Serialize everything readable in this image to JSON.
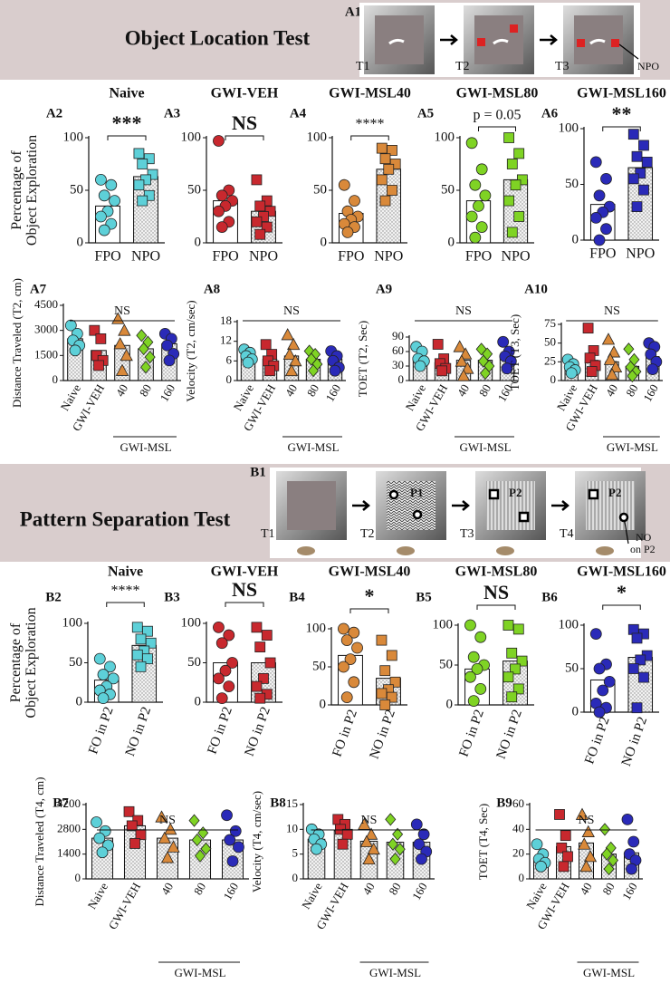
{
  "header_a": {
    "label": "A1",
    "title": "Object Location Test",
    "steps": [
      "T1",
      "T2",
      "T3"
    ],
    "note": "NPO"
  },
  "header_b": {
    "label": "B1",
    "title": "Pattern Separation Test",
    "steps": [
      "T1",
      "T2",
      "T3",
      "T4"
    ],
    "patterns": [
      "P1",
      "P2",
      "P2"
    ],
    "note": [
      "NO",
      "on P2"
    ]
  },
  "chart_data": [
    {
      "type": "bar",
      "label": "A2",
      "title": "Naive",
      "sig": "***",
      "ylabel": [
        "Percentage of",
        "Object Exploration"
      ],
      "categories": [
        "FPO",
        "NPO"
      ],
      "values": [
        35,
        63
      ],
      "points": [
        [
          60,
          55,
          45,
          40,
          30,
          25,
          18,
          12
        ],
        [
          85,
          80,
          75,
          65,
          60,
          55,
          45,
          40
        ]
      ],
      "colors": [
        "#5dd0d8",
        "#5dd0d8"
      ],
      "markers": [
        "circle",
        "square"
      ],
      "fills": [
        "white",
        "dots"
      ],
      "ylim": [
        0,
        100
      ],
      "yticks": [
        0,
        50,
        100
      ]
    },
    {
      "type": "bar",
      "label": "A3",
      "title": "GWI-VEH",
      "sig": "NS",
      "categories": [
        "FPO",
        "NPO"
      ],
      "values": [
        40,
        30
      ],
      "points": [
        [
          97,
          50,
          45,
          40,
          35,
          30,
          20,
          15
        ],
        [
          60,
          40,
          35,
          30,
          25,
          20,
          15,
          8
        ]
      ],
      "colors": [
        "#c8282e",
        "#c8282e"
      ],
      "markers": [
        "circle",
        "square"
      ],
      "fills": [
        "white",
        "dots"
      ],
      "ylim": [
        0,
        100
      ],
      "yticks": [
        0,
        50,
        100
      ]
    },
    {
      "type": "bar",
      "label": "A4",
      "title": "GWI-MSL40",
      "sig": "****",
      "categories": [
        "FPO",
        "NPO"
      ],
      "values": [
        28,
        70
      ],
      "points": [
        [
          55,
          40,
          30,
          25,
          22,
          18,
          15,
          10
        ],
        [
          90,
          88,
          80,
          75,
          70,
          60,
          50,
          40
        ]
      ],
      "colors": [
        "#d9893a",
        "#d9893a"
      ],
      "markers": [
        "circle",
        "square"
      ],
      "fills": [
        "white",
        "dots"
      ],
      "ylim": [
        0,
        100
      ],
      "yticks": [
        0,
        50,
        100
      ]
    },
    {
      "type": "bar",
      "label": "A5",
      "title": "GWI-MSL80",
      "sig": "p = 0.05",
      "categories": [
        "FPO",
        "NPO"
      ],
      "values": [
        40,
        60
      ],
      "points": [
        [
          95,
          70,
          55,
          45,
          35,
          25,
          15,
          5
        ],
        [
          100,
          85,
          75,
          60,
          55,
          40,
          25,
          10
        ]
      ],
      "colors": [
        "#7fd324",
        "#7fd324"
      ],
      "markers": [
        "circle",
        "square"
      ],
      "fills": [
        "white",
        "dots"
      ],
      "ylim": [
        0,
        100
      ],
      "yticks": [
        0,
        50,
        100
      ]
    },
    {
      "type": "bar",
      "label": "A6",
      "title": "GWI-MSL160",
      "sig": "**",
      "categories": [
        "FPO",
        "NPO"
      ],
      "values": [
        32,
        65
      ],
      "points": [
        [
          70,
          55,
          40,
          30,
          25,
          20,
          10,
          0
        ],
        [
          95,
          85,
          75,
          70,
          60,
          55,
          45,
          30
        ]
      ],
      "colors": [
        "#2a2ab8",
        "#2a2ab8"
      ],
      "markers": [
        "circle",
        "square"
      ],
      "fills": [
        "white",
        "dots"
      ],
      "ylim": [
        0,
        100
      ],
      "yticks": [
        0,
        50,
        100
      ]
    },
    {
      "type": "bar",
      "label": "A7",
      "sig": "NS",
      "ylabel": [
        "Distance Traveled (T2, cm)"
      ],
      "xgroup": "GWI-MSL",
      "categories": [
        "Naive",
        "GWI-VEH",
        "40",
        "80",
        "160"
      ],
      "values": [
        2500,
        1800,
        2100,
        1900,
        2200
      ],
      "points": [
        [
          3300,
          2800,
          2400,
          2100,
          1800
        ],
        [
          3000,
          2500,
          1500,
          1200,
          900
        ],
        [
          3700,
          3000,
          2200,
          1500,
          600
        ],
        [
          2700,
          2300,
          1900,
          1400,
          800
        ],
        [
          2800,
          2500,
          2100,
          1600,
          1200
        ]
      ],
      "colors": [
        "#5dd0d8",
        "#c8282e",
        "#d9893a",
        "#7fd324",
        "#2a2ab8"
      ],
      "markers": [
        "circle",
        "square",
        "triangle",
        "diamond",
        "circle"
      ],
      "fills": [
        "dots",
        "dots",
        "dots",
        "dots",
        "dots"
      ],
      "ylim": [
        0,
        4500
      ],
      "yticks": [
        0,
        1500,
        3000,
        4500
      ]
    },
    {
      "type": "bar",
      "label": "A8",
      "sig": "NS",
      "ylabel": [
        "Velocity (T2, cm/sec)"
      ],
      "xgroup": "GWI-MSL",
      "categories": [
        "Naive",
        "GWI-VEH",
        "40",
        "80",
        "160"
      ],
      "values": [
        7.5,
        6.5,
        7.5,
        6.5,
        6.5
      ],
      "points": [
        [
          9.5,
          8.5,
          7.5,
          6.5,
          5.5
        ],
        [
          11,
          8,
          6,
          4.5,
          3
        ],
        [
          14,
          11,
          8,
          6,
          3
        ],
        [
          9,
          8,
          6.5,
          5,
          3
        ],
        [
          9,
          7.5,
          6,
          4,
          3
        ]
      ],
      "colors": [
        "#5dd0d8",
        "#c8282e",
        "#d9893a",
        "#7fd324",
        "#2a2ab8"
      ],
      "markers": [
        "circle",
        "square",
        "triangle",
        "diamond",
        "circle"
      ],
      "fills": [
        "dots",
        "dots",
        "dots",
        "dots",
        "dots"
      ],
      "ylim": [
        0,
        18
      ],
      "yticks": [
        0,
        6,
        12,
        18
      ]
    },
    {
      "type": "bar",
      "label": "A9",
      "sig": "NS",
      "ylabel": [
        "TOET (T2, Sec)"
      ],
      "xgroup": "GWI-MSL",
      "categories": [
        "Naive",
        "GWI-VEH",
        "40",
        "80",
        "160"
      ],
      "values": [
        48,
        37,
        42,
        42,
        50
      ],
      "points": [
        [
          70,
          60,
          45,
          40,
          30
        ],
        [
          75,
          45,
          35,
          25,
          20
        ],
        [
          70,
          55,
          40,
          25,
          10
        ],
        [
          65,
          55,
          40,
          30,
          15
        ],
        [
          80,
          60,
          50,
          40,
          25
        ]
      ],
      "colors": [
        "#5dd0d8",
        "#c8282e",
        "#d9893a",
        "#7fd324",
        "#2a2ab8"
      ],
      "markers": [
        "circle",
        "square",
        "triangle",
        "diamond",
        "circle"
      ],
      "fills": [
        "dots",
        "dots",
        "dots",
        "dots",
        "dots"
      ],
      "ylim": [
        0,
        90
      ],
      "yticks": [
        0,
        30,
        60,
        90
      ]
    },
    {
      "type": "bar",
      "label": "A10",
      "sig": "NS",
      "ylabel": [
        "TOET (T3, Sec)"
      ],
      "xgroup": "GWI-MSL",
      "categories": [
        "Naive",
        "GWI-VEH",
        "40",
        "80",
        "160"
      ],
      "values": [
        18,
        27,
        25,
        19,
        32
      ],
      "points": [
        [
          28,
          22,
          18,
          14,
          10
        ],
        [
          70,
          40,
          30,
          20,
          12
        ],
        [
          55,
          38,
          28,
          18,
          8
        ],
        [
          42,
          28,
          18,
          12,
          6
        ],
        [
          50,
          45,
          35,
          25,
          15
        ]
      ],
      "colors": [
        "#5dd0d8",
        "#c8282e",
        "#d9893a",
        "#7fd324",
        "#2a2ab8"
      ],
      "markers": [
        "circle",
        "square",
        "triangle",
        "diamond",
        "circle"
      ],
      "fills": [
        "dots",
        "dots",
        "dots",
        "dots",
        "dots"
      ],
      "ylim": [
        0,
        75
      ],
      "yticks": [
        0,
        25,
        50,
        75
      ]
    },
    {
      "type": "bar",
      "label": "B2",
      "title": "Naive",
      "sig": "****",
      "ylabel": [
        "Percentage of",
        "Object Exploration"
      ],
      "categories": [
        "FO in P2",
        "NO in P2"
      ],
      "values": [
        28,
        72
      ],
      "points": [
        [
          55,
          45,
          35,
          30,
          20,
          15,
          10,
          5
        ],
        [
          95,
          90,
          80,
          75,
          65,
          60,
          55,
          45
        ]
      ],
      "colors": [
        "#5dd0d8",
        "#5dd0d8"
      ],
      "markers": [
        "circle",
        "square"
      ],
      "fills": [
        "white",
        "dots"
      ],
      "ylim": [
        0,
        100
      ],
      "yticks": [
        0,
        50,
        100
      ]
    },
    {
      "type": "bar",
      "label": "B3",
      "title": "GWI-VEH",
      "sig": "NS",
      "categories": [
        "FO in P2",
        "NO in P2"
      ],
      "values": [
        50,
        50
      ],
      "points": [
        [
          95,
          85,
          75,
          50,
          40,
          30,
          20,
          5
        ],
        [
          95,
          85,
          70,
          50,
          30,
          20,
          10,
          5
        ]
      ],
      "colors": [
        "#c8282e",
        "#c8282e"
      ],
      "markers": [
        "circle",
        "square"
      ],
      "fills": [
        "white",
        "dots"
      ],
      "ylim": [
        0,
        100
      ],
      "yticks": [
        0,
        50,
        100
      ]
    },
    {
      "type": "bar",
      "label": "B4",
      "title": "GWI-MSL40",
      "sig": "*",
      "categories": [
        "FO in P2",
        "NO in P2"
      ],
      "values": [
        65,
        35
      ],
      "points": [
        [
          100,
          95,
          85,
          75,
          60,
          50,
          30,
          10
        ],
        [
          85,
          65,
          45,
          30,
          20,
          15,
          10,
          0
        ]
      ],
      "colors": [
        "#d9893a",
        "#d9893a"
      ],
      "markers": [
        "circle",
        "square"
      ],
      "fills": [
        "white",
        "dots"
      ],
      "ylim": [
        0,
        100
      ],
      "yticks": [
        0,
        50,
        100
      ]
    },
    {
      "type": "bar",
      "label": "B5",
      "title": "GWI-MSL80",
      "sig": "NS",
      "categories": [
        "FO in P2",
        "NO in P2"
      ],
      "values": [
        45,
        55
      ],
      "points": [
        [
          100,
          85,
          60,
          50,
          45,
          35,
          20,
          5
        ],
        [
          100,
          95,
          65,
          55,
          45,
          35,
          20,
          10
        ]
      ],
      "colors": [
        "#7fd324",
        "#7fd324"
      ],
      "markers": [
        "circle",
        "square"
      ],
      "fills": [
        "white",
        "dots"
      ],
      "ylim": [
        0,
        100
      ],
      "yticks": [
        0,
        50,
        100
      ]
    },
    {
      "type": "bar",
      "label": "B6",
      "title": "GWI-MSL160",
      "sig": "*",
      "categories": [
        "FO in P2",
        "NO in P2"
      ],
      "values": [
        37,
        63
      ],
      "points": [
        [
          90,
          55,
          50,
          35,
          25,
          10,
          5,
          0
        ],
        [
          95,
          90,
          85,
          65,
          60,
          50,
          40,
          5
        ]
      ],
      "colors": [
        "#2a2ab8",
        "#2a2ab8"
      ],
      "markers": [
        "circle",
        "square"
      ],
      "fills": [
        "white",
        "dots"
      ],
      "ylim": [
        0,
        100
      ],
      "yticks": [
        0,
        50,
        100
      ]
    },
    {
      "type": "bar",
      "label": "B7",
      "sig": "NS",
      "ylabel": [
        "Distance Traveled (T4, cm)"
      ],
      "xgroup": "GWI-MSL",
      "categories": [
        "Naive",
        "GWI-VEH",
        "40",
        "80",
        "160"
      ],
      "values": [
        2300,
        3000,
        2300,
        2200,
        2200
      ],
      "points": [
        [
          3200,
          2700,
          2300,
          1900,
          1500
        ],
        [
          3800,
          3300,
          3000,
          2500,
          2000
        ],
        [
          3500,
          2800,
          2300,
          1800,
          1200
        ],
        [
          3300,
          2600,
          2200,
          1700,
          1300
        ],
        [
          3600,
          2700,
          2200,
          1800,
          1000
        ]
      ],
      "colors": [
        "#5dd0d8",
        "#c8282e",
        "#d9893a",
        "#7fd324",
        "#2a2ab8"
      ],
      "markers": [
        "circle",
        "square",
        "triangle",
        "diamond",
        "circle"
      ],
      "fills": [
        "dots",
        "dots",
        "dots",
        "dots",
        "dots"
      ],
      "ylim": [
        0,
        4200
      ],
      "yticks": [
        0,
        1400,
        2800,
        4200
      ]
    },
    {
      "type": "bar",
      "label": "B8",
      "sig": "NS",
      "ylabel": [
        "Velocity (T4, cm/sec)"
      ],
      "xgroup": "GWI-MSL",
      "categories": [
        "Naive",
        "GWI-VEH",
        "40",
        "80",
        "160"
      ],
      "values": [
        8,
        9.7,
        7.6,
        7.4,
        7.4
      ],
      "points": [
        [
          10,
          9,
          8,
          7,
          6
        ],
        [
          12,
          11,
          10,
          9,
          7
        ],
        [
          11,
          9,
          7.5,
          6,
          4
        ],
        [
          12,
          9,
          7,
          6,
          4
        ],
        [
          11,
          9,
          7,
          5.5,
          4
        ]
      ],
      "colors": [
        "#5dd0d8",
        "#c8282e",
        "#d9893a",
        "#7fd324",
        "#2a2ab8"
      ],
      "markers": [
        "circle",
        "square",
        "triangle",
        "diamond",
        "circle"
      ],
      "fills": [
        "dots",
        "dots",
        "dots",
        "dots",
        "dots"
      ],
      "ylim": [
        0,
        15
      ],
      "yticks": [
        0,
        5,
        10,
        15
      ]
    },
    {
      "type": "bar",
      "label": "B9",
      "sig": "NS",
      "ylabel": [
        "TOET (T4, Sec)"
      ],
      "xgroup": "GWI-MSL",
      "categories": [
        "Naive",
        "GWI-VEH",
        "40",
        "80",
        "160"
      ],
      "values": [
        16,
        26,
        29,
        20,
        21
      ],
      "points": [
        [
          28,
          20,
          16,
          13,
          10
        ],
        [
          52,
          35,
          25,
          18,
          10
        ],
        [
          52,
          38,
          28,
          18,
          10
        ],
        [
          40,
          25,
          20,
          15,
          8
        ],
        [
          48,
          30,
          20,
          15,
          8
        ]
      ],
      "colors": [
        "#5dd0d8",
        "#c8282e",
        "#d9893a",
        "#7fd324",
        "#2a2ab8"
      ],
      "markers": [
        "circle",
        "square",
        "triangle",
        "diamond",
        "circle"
      ],
      "fills": [
        "dots",
        "dots",
        "dots",
        "dots",
        "dots"
      ],
      "ylim": [
        0,
        60
      ],
      "yticks": [
        0,
        20,
        40,
        60
      ]
    }
  ]
}
